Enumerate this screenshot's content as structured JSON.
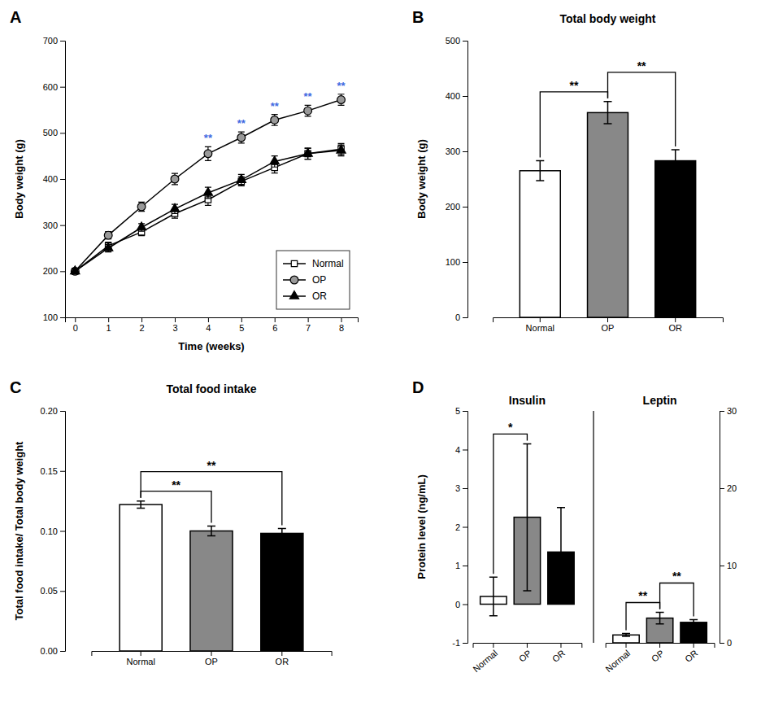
{
  "chart_data": [
    {
      "type": "line",
      "title": "A",
      "xlabel": "Time (weeks)",
      "ylabel": "Body weight (g)",
      "x": [
        0,
        1,
        2,
        3,
        4,
        5,
        6,
        7,
        8
      ],
      "xlim": [
        -0.3,
        8.5
      ],
      "xticks": [
        0,
        1,
        2,
        3,
        4,
        5,
        6,
        7,
        8
      ],
      "ylim": [
        100,
        700
      ],
      "yticks": [
        100,
        200,
        300,
        400,
        500,
        600,
        700
      ],
      "legend": "lower right",
      "series": [
        {
          "name": "Normal",
          "color": "black",
          "marker": "square",
          "values": [
            200,
            255,
            285,
            325,
            355,
            395,
            425,
            455,
            465
          ],
          "errors": [
            5,
            8,
            8,
            10,
            12,
            10,
            12,
            12,
            12
          ]
        },
        {
          "name": "OP",
          "color": "black",
          "marker": "circle",
          "values": [
            200,
            278,
            340,
            400,
            455,
            490,
            528,
            548,
            572
          ],
          "errors": [
            5,
            8,
            10,
            12,
            15,
            12,
            12,
            12,
            12
          ]
        },
        {
          "name": "OR",
          "color": "black",
          "marker": "triangle",
          "values": [
            200,
            250,
            295,
            335,
            370,
            398,
            438,
            455,
            462
          ],
          "errors": [
            5,
            8,
            8,
            10,
            12,
            12,
            12,
            12,
            12
          ]
        }
      ],
      "annotations": [
        {
          "text": "**",
          "x": 4,
          "color": "#4169E1"
        },
        {
          "text": "**",
          "x": 5,
          "color": "#4169E1"
        },
        {
          "text": "**",
          "x": 6,
          "color": "#4169E1"
        },
        {
          "text": "**",
          "x": 7,
          "color": "#4169E1"
        },
        {
          "text": "**",
          "x": 8,
          "color": "#4169E1"
        }
      ]
    },
    {
      "type": "bar",
      "title": "B",
      "subtitle": "Total body weight",
      "ylabel": "Body weight (g)",
      "categories": [
        "Normal",
        "OP",
        "OR"
      ],
      "values": [
        265,
        370,
        283
      ],
      "errors": [
        18,
        20,
        20
      ],
      "colors": [
        "white",
        "#888888",
        "black"
      ],
      "ylim": [
        0,
        500
      ],
      "yticks": [
        0,
        100,
        200,
        300,
        400,
        500
      ],
      "annotations": [
        {
          "text": "**",
          "from": "Normal",
          "to": "OP"
        },
        {
          "text": "**",
          "from": "OP",
          "to": "OR"
        }
      ]
    },
    {
      "type": "bar",
      "title": "C",
      "subtitle": "Total food intake",
      "ylabel": "Total food intake/ Total body weight",
      "categories": [
        "Normal",
        "OP",
        "OR"
      ],
      "values": [
        0.122,
        0.1,
        0.098
      ],
      "errors": [
        0.003,
        0.004,
        0.004
      ],
      "colors": [
        "white",
        "#888888",
        "black"
      ],
      "ylim": [
        0,
        0.2
      ],
      "yticks": [
        {
          "value": 0,
          "label": "0.00"
        },
        {
          "value": 0.05,
          "label": "0.05"
        },
        {
          "value": 0.1,
          "label": "0.10"
        },
        {
          "value": 0.15,
          "label": "0.15"
        },
        {
          "value": 0.2,
          "label": "0.20"
        }
      ],
      "annotations": [
        {
          "text": "**",
          "from": "Normal",
          "to": "OP"
        },
        {
          "text": "**",
          "from": "Normal",
          "to": "OR"
        }
      ]
    },
    {
      "type": "bar",
      "title": "D",
      "ylabel": "Protein level (ng/mL)",
      "categories": [
        "Normal",
        "OP",
        "OR"
      ],
      "series": [
        {
          "name": "Insulin",
          "values": [
            0.2,
            2.25,
            1.35
          ],
          "errors": [
            0.5,
            1.9,
            1.15
          ],
          "colors": [
            "white",
            "#888888",
            "black"
          ]
        },
        {
          "name": "Leptin",
          "axis": "y2",
          "values": [
            1.02,
            3.2,
            2.65
          ],
          "errors": [
            0.18,
            0.75,
            0.35
          ],
          "colors": [
            "white",
            "#888888",
            "black"
          ]
        }
      ],
      "ylim": [
        -1,
        5
      ],
      "yticks": [
        -1,
        0,
        1,
        2,
        3,
        4,
        5
      ],
      "y2lim": [
        0,
        30
      ],
      "y2ticks": [
        0,
        10,
        20,
        30
      ],
      "annotations": [
        {
          "text": "*",
          "series": "Insulin",
          "from": "Normal",
          "to": "OP"
        },
        {
          "text": "**",
          "series": "Leptin",
          "from": "Normal",
          "to": "OP"
        },
        {
          "text": "**",
          "series": "Leptin",
          "from": "OP",
          "to": "OR"
        }
      ]
    }
  ]
}
